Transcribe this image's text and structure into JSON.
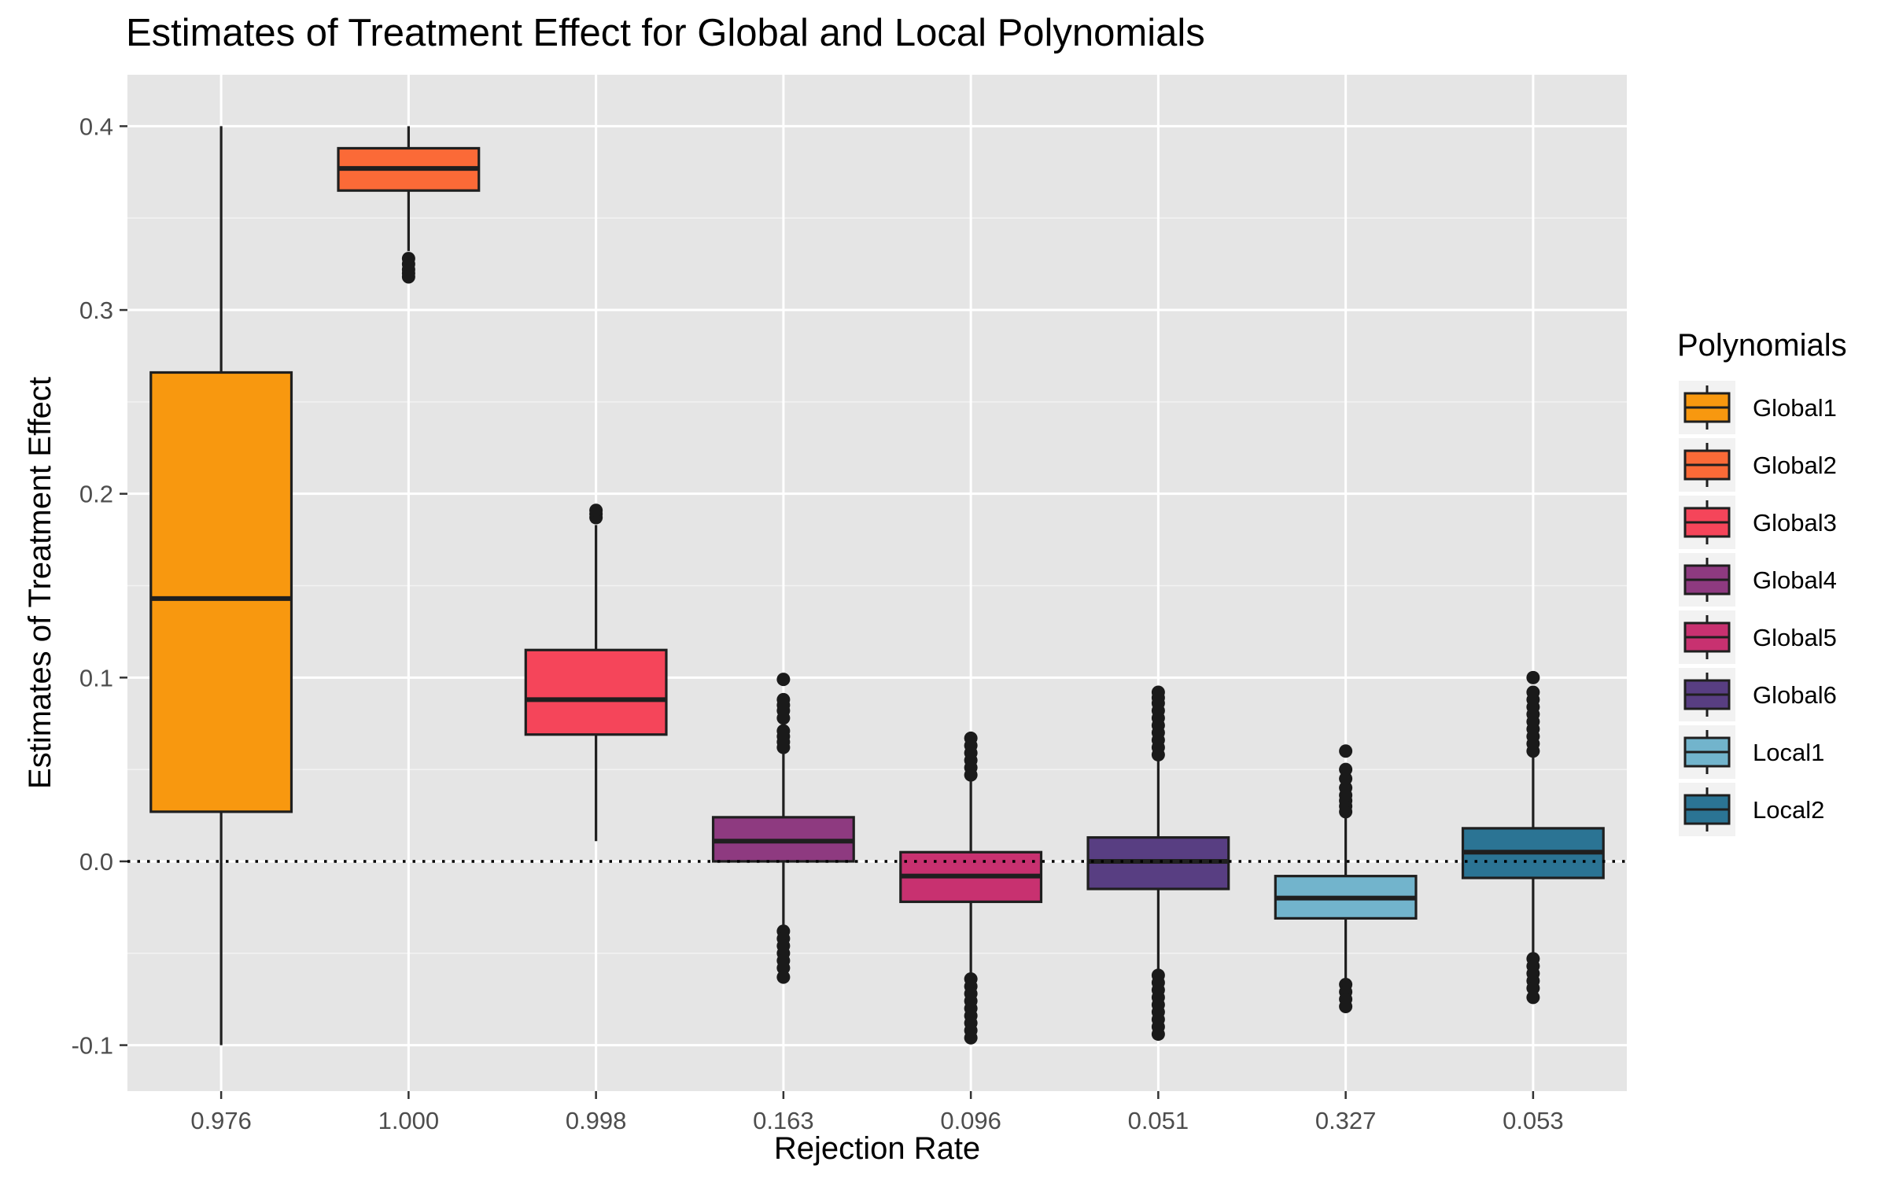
{
  "chart_data": {
    "type": "boxplot",
    "title": "Estimates of Treatment Effect for Global and Local Polynomials",
    "xlabel": "Rejection Rate",
    "ylabel": "Estimates of Treatment Effect",
    "ylim": [
      -0.125,
      0.428
    ],
    "yticks": [
      -0.1,
      0.0,
      0.1,
      0.2,
      0.3,
      0.4
    ],
    "ytick_labels": [
      "-0.1",
      "0.0",
      "0.1",
      "0.2",
      "0.3",
      "0.4"
    ],
    "reference_line": {
      "y": 0.0,
      "style": "dotted"
    },
    "grid": true,
    "legend": {
      "title": "Polynomials",
      "placement": "right"
    },
    "categories": [
      "0.976",
      "1.000",
      "0.998",
      "0.163",
      "0.096",
      "0.051",
      "0.327",
      "0.053"
    ],
    "series": [
      {
        "name": "Global1",
        "color": "#F8980F",
        "q1": 0.027,
        "median": 0.143,
        "q3": 0.266,
        "whisker_low": -0.1,
        "whisker_high": 0.4,
        "outliers": []
      },
      {
        "name": "Global2",
        "color": "#FB6A37",
        "q1": 0.365,
        "median": 0.377,
        "q3": 0.388,
        "whisker_low": 0.332,
        "whisker_high": 0.4,
        "outliers": [
          0.318,
          0.32,
          0.322,
          0.325,
          0.328
        ]
      },
      {
        "name": "Global3",
        "color": "#F5455A",
        "q1": 0.069,
        "median": 0.088,
        "q3": 0.115,
        "whisker_low": 0.011,
        "whisker_high": 0.183,
        "outliers": [
          0.187,
          0.189,
          0.191
        ]
      },
      {
        "name": "Global4",
        "color": "#8E3A80",
        "q1": 0.0,
        "median": 0.011,
        "q3": 0.024,
        "whisker_low": -0.035,
        "whisker_high": 0.059,
        "outliers": [
          0.062,
          0.065,
          0.068,
          0.071,
          0.078,
          0.082,
          0.085,
          0.088,
          0.099,
          -0.038,
          -0.042,
          -0.046,
          -0.05,
          -0.054,
          -0.058,
          -0.063
        ]
      },
      {
        "name": "Global5",
        "color": "#C83170",
        "q1": -0.022,
        "median": -0.008,
        "q3": 0.005,
        "whisker_low": -0.061,
        "whisker_high": 0.044,
        "outliers": [
          0.047,
          0.051,
          0.055,
          0.059,
          0.063,
          0.067,
          -0.064,
          -0.068,
          -0.072,
          -0.076,
          -0.08,
          -0.084,
          -0.088,
          -0.092,
          -0.096
        ]
      },
      {
        "name": "Global6",
        "color": "#583E82",
        "q1": -0.015,
        "median": 0.0,
        "q3": 0.013,
        "whisker_low": -0.059,
        "whisker_high": 0.055,
        "outliers": [
          0.058,
          0.062,
          0.066,
          0.07,
          0.074,
          0.078,
          0.082,
          0.086,
          0.089,
          0.092,
          -0.062,
          -0.066,
          -0.07,
          -0.074,
          -0.078,
          -0.082,
          -0.086,
          -0.09,
          -0.094
        ]
      },
      {
        "name": "Local1",
        "color": "#72B4CC",
        "q1": -0.031,
        "median": -0.02,
        "q3": -0.008,
        "whisker_low": -0.064,
        "whisker_high": 0.024,
        "outliers": [
          0.027,
          0.03,
          0.033,
          0.036,
          0.04,
          0.045,
          0.05,
          0.06,
          -0.067,
          -0.071,
          -0.075,
          -0.079
        ]
      },
      {
        "name": "Local2",
        "color": "#2B7494",
        "q1": -0.009,
        "median": 0.005,
        "q3": 0.018,
        "whisker_low": -0.05,
        "whisker_high": 0.057,
        "outliers": [
          0.06,
          0.064,
          0.068,
          0.072,
          0.076,
          0.08,
          0.084,
          0.088,
          0.092,
          0.1,
          -0.053,
          -0.057,
          -0.061,
          -0.065,
          -0.069,
          -0.074
        ]
      }
    ]
  },
  "colors": {
    "panel_background": "#E5E5E5",
    "grid_major": "#FFFFFF",
    "grid_minor": "#F2F2F2",
    "box_outline": "#1F1F1F"
  }
}
